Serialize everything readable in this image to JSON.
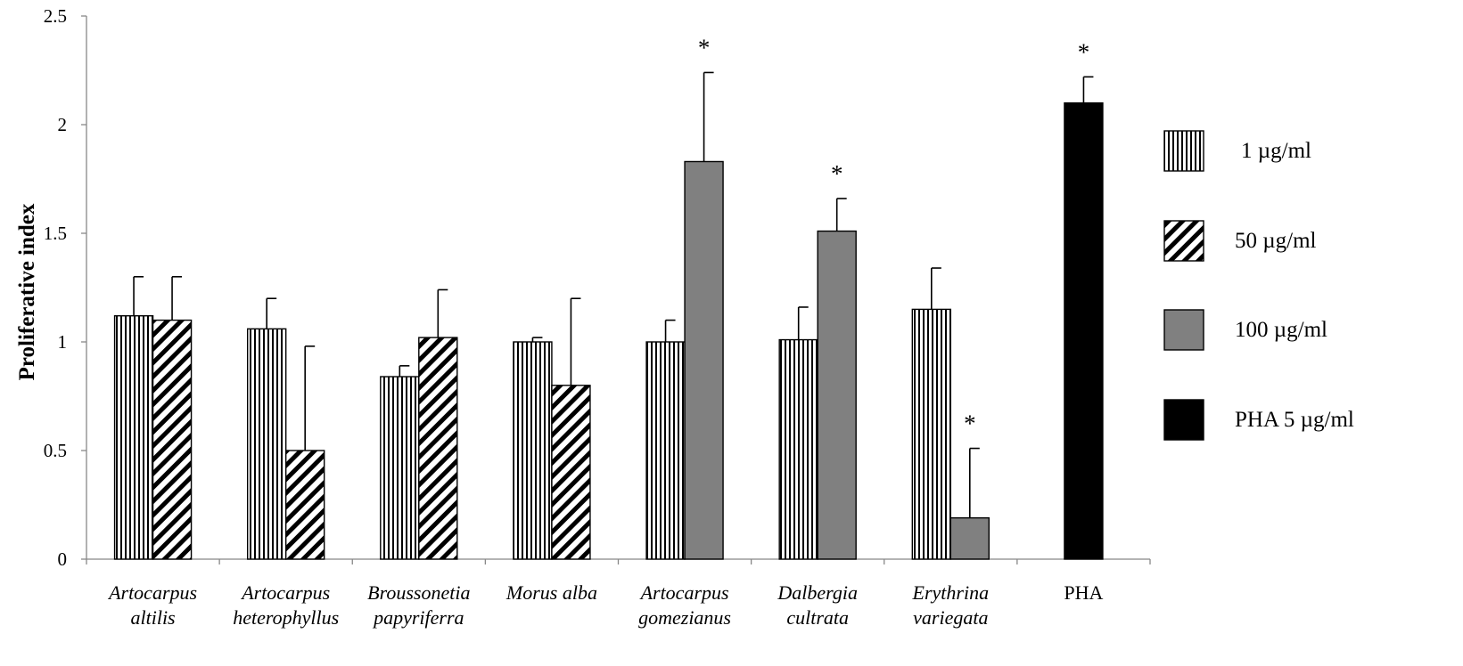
{
  "chart_data": {
    "type": "bar",
    "ylabel": "Proliferative index",
    "ylim": [
      0,
      2.5
    ],
    "yticks": [
      "0",
      "0.5",
      "1",
      "1.5",
      "2",
      "2.5"
    ],
    "yticks_values": [
      0,
      0.5,
      1,
      1.5,
      2,
      2.5
    ],
    "grid": false,
    "legend_position": "right",
    "categories": [
      [
        "Artocarpus",
        "altilis"
      ],
      [
        "Artocarpus",
        "heterophyllus"
      ],
      [
        "Broussonetia",
        "papyriferra"
      ],
      [
        "Morus alba"
      ],
      [
        "Artocarpus",
        "gomezianus"
      ],
      [
        "Dalbergia",
        "cultrata"
      ],
      [
        "Erythrina",
        "variegata"
      ],
      [
        "PHA"
      ]
    ],
    "series": [
      {
        "name": "1 µg/ml",
        "pattern": "vertical",
        "color": "#ffffff"
      },
      {
        "name": "50 µg/ml",
        "pattern": "diagonal",
        "color": "#ffffff"
      },
      {
        "name": "100 µg/ml",
        "pattern": "solid",
        "color": "#808080"
      },
      {
        "name": "PHA  5 µg/ml",
        "pattern": "solid",
        "color": "#000000"
      }
    ],
    "groups": [
      {
        "bars": [
          {
            "series": 0,
            "value": 1.12,
            "error": 0.18,
            "star": false
          },
          {
            "series": 1,
            "value": 1.1,
            "error": 0.2,
            "star": false
          }
        ]
      },
      {
        "bars": [
          {
            "series": 0,
            "value": 1.06,
            "error": 0.14,
            "star": false
          },
          {
            "series": 1,
            "value": 0.5,
            "error": 0.48,
            "star": false
          }
        ]
      },
      {
        "bars": [
          {
            "series": 0,
            "value": 0.84,
            "error": 0.05,
            "star": false
          },
          {
            "series": 1,
            "value": 1.02,
            "error": 0.22,
            "star": false
          }
        ]
      },
      {
        "bars": [
          {
            "series": 0,
            "value": 1.0,
            "error": 0.02,
            "star": false
          },
          {
            "series": 1,
            "value": 0.8,
            "error": 0.4,
            "star": false
          }
        ]
      },
      {
        "bars": [
          {
            "series": 0,
            "value": 1.0,
            "error": 0.1,
            "star": false
          },
          {
            "series": 2,
            "value": 1.83,
            "error": 0.41,
            "star": true
          }
        ]
      },
      {
        "bars": [
          {
            "series": 0,
            "value": 1.01,
            "error": 0.15,
            "star": false
          },
          {
            "series": 2,
            "value": 1.51,
            "error": 0.15,
            "star": true
          }
        ]
      },
      {
        "bars": [
          {
            "series": 0,
            "value": 1.15,
            "error": 0.19,
            "star": false
          },
          {
            "series": 2,
            "value": 0.19,
            "error": 0.32,
            "star": true
          }
        ]
      },
      {
        "bars": [
          {
            "series": 3,
            "value": 2.1,
            "error": 0.12,
            "star": true
          }
        ]
      }
    ],
    "star_symbol": "*"
  }
}
